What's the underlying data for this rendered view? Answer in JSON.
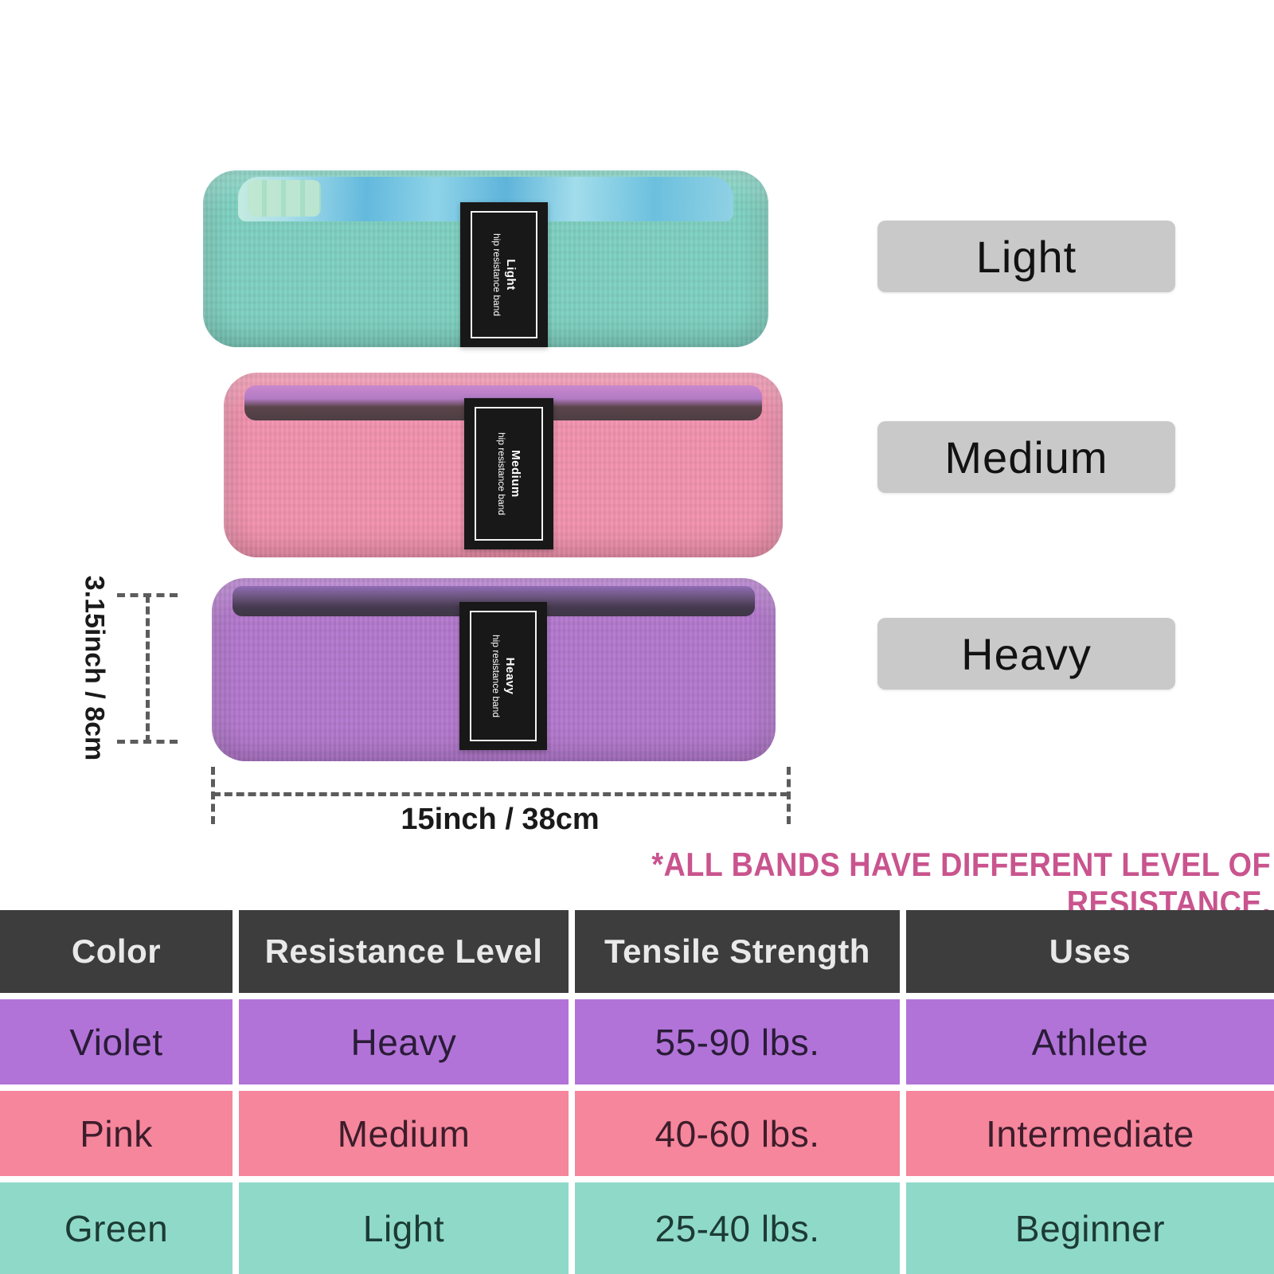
{
  "background": "#ffffff",
  "bands": [
    {
      "id": "green",
      "color_name": "Green",
      "base_color": "#7ed0c0",
      "tag_line1": "Light",
      "tag_line2": "hip resistance band"
    },
    {
      "id": "pink",
      "color_name": "Pink",
      "base_color": "#f192ae",
      "tag_line1": "Medium",
      "tag_line2": "hip resistance band"
    },
    {
      "id": "violet",
      "color_name": "Violet",
      "base_color": "#b378cd",
      "tag_line1": "Heavy",
      "tag_line2": "hip resistance band"
    }
  ],
  "level_labels": [
    {
      "label": "Light"
    },
    {
      "label": "Medium"
    },
    {
      "label": "Heavy"
    }
  ],
  "dimensions": {
    "height": "3.15inch / 8cm",
    "width": "15inch / 38cm"
  },
  "note": "*ALL BANDS HAVE DIFFERENT LEVEL OF RESISTANCE.",
  "note_color": "#c9548e",
  "table": {
    "header_bg": "#3d3d3d",
    "headers": [
      "Color",
      "Resistance Level",
      "Tensile Strength",
      "Uses"
    ],
    "rows": [
      {
        "color_name": "Violet",
        "resistance": "Heavy",
        "tensile": "55-90 lbs.",
        "uses": "Athlete",
        "bg": "#b273d8"
      },
      {
        "color_name": "Pink",
        "resistance": "Medium",
        "tensile": "40-60 lbs.",
        "uses": "Intermediate",
        "bg": "#f5869c"
      },
      {
        "color_name": "Green",
        "resistance": "Light",
        "tensile": "25-40 lbs.",
        "uses": "Beginner",
        "bg": "#8fd9c9"
      }
    ]
  }
}
